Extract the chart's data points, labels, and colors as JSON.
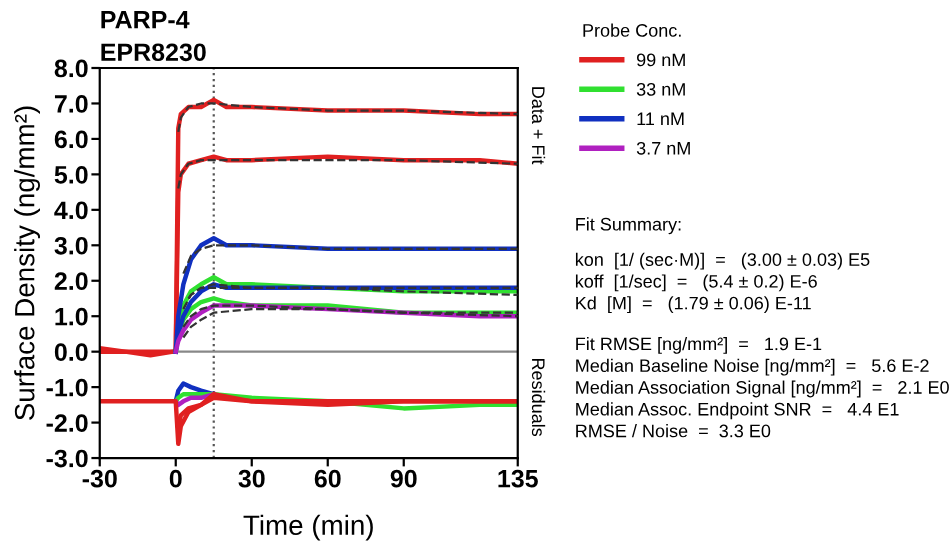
{
  "chart_data": {
    "type": "line",
    "title": "PARP-4",
    "subtitle": "EPR8230",
    "xlabel": "Time (min)",
    "ylabel": "Surface Density (ng/mm²)",
    "legend_title": "Probe Conc.",
    "legend": "right",
    "xlim": [
      -30,
      135
    ],
    "xticks": [
      -30,
      0,
      30,
      60,
      90,
      135
    ],
    "ylim": [
      -3,
      8
    ],
    "yticks": [
      {
        "value": -3,
        "label": "-3.0"
      },
      {
        "value": -2,
        "label": "-2.0"
      },
      {
        "value": -1,
        "label": "-1.0"
      },
      {
        "value": 0,
        "label": "0.0"
      },
      {
        "value": 1,
        "label": "1.0"
      },
      {
        "value": 2,
        "label": "2.0"
      },
      {
        "value": 3,
        "label": "3.0"
      },
      {
        "value": 4,
        "label": "4.0"
      },
      {
        "value": 5,
        "label": "5.0"
      },
      {
        "value": 6,
        "label": "6.0"
      },
      {
        "value": 7,
        "label": "7.0"
      },
      {
        "value": 8,
        "label": "8.0"
      }
    ],
    "grid": false,
    "marker": "none",
    "ref_lines": [
      {
        "axis": "x",
        "value": 15,
        "color": "#555555",
        "line_style": "dotted"
      },
      {
        "axis": "y",
        "value": 0,
        "color": "#888888",
        "line_style": "solid"
      }
    ],
    "series": [
      {
        "name": "99 nM",
        "color": "#e02020",
        "x": [
          -30,
          -20,
          -10,
          -1,
          0,
          1,
          2,
          5,
          10,
          15,
          20,
          30,
          60,
          90,
          120,
          135
        ],
        "values": [
          0.1,
          0.0,
          -0.1,
          0.0,
          0.0,
          6.3,
          6.7,
          6.9,
          6.9,
          7.1,
          6.9,
          6.9,
          6.8,
          6.8,
          6.7,
          6.7
        ]
      },
      {
        "color": "#e02020",
        "x": [
          -30,
          -20,
          -10,
          -1,
          0,
          1,
          2,
          5,
          10,
          15,
          20,
          30,
          60,
          90,
          120,
          135
        ],
        "values": [
          0.0,
          0.0,
          0.0,
          0.0,
          0.0,
          4.5,
          5.0,
          5.3,
          5.4,
          5.5,
          5.4,
          5.4,
          5.5,
          5.4,
          5.4,
          5.3
        ]
      },
      {
        "name": "33 nM",
        "color": "#30e030",
        "x": [
          0,
          1,
          3,
          6,
          10,
          15,
          20,
          30,
          60,
          90,
          120,
          135
        ],
        "values": [
          0.0,
          0.8,
          1.3,
          1.7,
          1.9,
          2.1,
          1.9,
          1.9,
          1.8,
          1.7,
          1.7,
          1.7
        ]
      },
      {
        "color": "#30e030",
        "x": [
          0,
          1,
          3,
          6,
          10,
          15,
          20,
          30,
          60,
          90,
          120,
          135
        ],
        "values": [
          0.0,
          0.5,
          0.9,
          1.2,
          1.4,
          1.5,
          1.4,
          1.3,
          1.3,
          1.1,
          1.1,
          1.1
        ]
      },
      {
        "name": "11 nM",
        "color": "#1030c0",
        "x": [
          0,
          1,
          3,
          6,
          10,
          15,
          20,
          30,
          60,
          90,
          120,
          135
        ],
        "values": [
          0.0,
          1.0,
          1.9,
          2.6,
          3.0,
          3.2,
          3.0,
          3.0,
          2.9,
          2.9,
          2.9,
          2.9
        ]
      },
      {
        "color": "#1030c0",
        "x": [
          0,
          1,
          3,
          6,
          10,
          15,
          20,
          30,
          60,
          90,
          120,
          135
        ],
        "values": [
          0.0,
          0.5,
          1.0,
          1.4,
          1.7,
          1.9,
          1.8,
          1.8,
          1.8,
          1.8,
          1.8,
          1.8
        ]
      },
      {
        "name": "3.7 nM",
        "color": "#b020c0",
        "x": [
          0,
          1,
          3,
          6,
          10,
          15,
          20,
          30,
          60,
          90,
          120,
          135
        ],
        "values": [
          0.0,
          0.3,
          0.6,
          0.9,
          1.1,
          1.3,
          1.3,
          1.3,
          1.2,
          1.1,
          1.0,
          1.0
        ]
      },
      {
        "color": "#333333",
        "line_style": "dashed",
        "x": [
          1,
          2,
          5,
          10,
          15,
          30,
          60,
          90,
          135
        ],
        "values": [
          6.2,
          6.6,
          6.9,
          7.0,
          7.0,
          6.9,
          6.8,
          6.8,
          6.7
        ]
      },
      {
        "color": "#333333",
        "line_style": "dashed",
        "x": [
          1,
          2,
          5,
          10,
          15,
          30,
          60,
          90,
          135
        ],
        "values": [
          4.6,
          5.0,
          5.3,
          5.4,
          5.4,
          5.4,
          5.4,
          5.4,
          5.3
        ]
      },
      {
        "color": "#333333",
        "line_style": "dashed",
        "x": [
          3,
          6,
          10,
          15,
          30,
          60,
          90,
          135
        ],
        "values": [
          2.2,
          2.7,
          2.9,
          3.0,
          3.0,
          2.9,
          2.9,
          2.9
        ]
      },
      {
        "color": "#333333",
        "line_style": "dashed",
        "x": [
          5,
          6,
          10,
          15,
          30,
          60,
          90,
          135
        ],
        "values": [
          1.5,
          1.6,
          1.8,
          1.8,
          1.8,
          1.8,
          1.8,
          1.8
        ]
      },
      {
        "color": "#333333",
        "line_style": "dashed",
        "x": [
          3,
          6,
          10,
          15,
          30,
          60,
          90,
          135
        ],
        "values": [
          1.2,
          1.6,
          1.8,
          1.9,
          1.8,
          1.8,
          1.7,
          1.6
        ]
      },
      {
        "color": "#333333",
        "line_style": "dashed",
        "x": [
          3,
          6,
          10,
          15,
          30,
          60,
          90,
          135
        ],
        "values": [
          0.7,
          1.0,
          1.2,
          1.3,
          1.3,
          1.2,
          1.1,
          1.1
        ]
      },
      {
        "color": "#333333",
        "line_style": "dashed",
        "x": [
          3,
          6,
          10,
          15,
          30,
          60,
          90,
          135
        ],
        "values": [
          0.4,
          0.7,
          0.9,
          1.1,
          1.2,
          1.2,
          1.1,
          1.0
        ]
      },
      {
        "color": "#1030c0",
        "x": [
          0,
          1,
          3,
          6,
          10,
          15
        ],
        "values": [
          -1.4,
          -1.1,
          -0.9,
          -1.0,
          -1.1,
          -1.2
        ]
      },
      {
        "color": "#30e030",
        "x": [
          0,
          1,
          3,
          6,
          10,
          15,
          30,
          60,
          90,
          120,
          135
        ],
        "values": [
          -1.4,
          -1.3,
          -1.2,
          -1.2,
          -1.2,
          -1.2,
          -1.3,
          -1.4,
          -1.6,
          -1.5,
          -1.5
        ]
      },
      {
        "color": "#b020c0",
        "x": [
          0,
          1,
          3,
          6,
          10,
          15
        ],
        "values": [
          -1.4,
          -1.5,
          -1.4,
          -1.3,
          -1.3,
          -1.2
        ]
      },
      {
        "color": "#e02020",
        "x": [
          -30,
          -20,
          -10,
          0,
          1,
          2,
          5,
          10,
          15,
          30,
          60,
          90,
          120,
          135
        ],
        "values": [
          -1.4,
          -1.4,
          -1.4,
          -1.4,
          -2.6,
          -2.1,
          -1.7,
          -1.5,
          -1.2,
          -1.4,
          -1.4,
          -1.4,
          -1.4,
          -1.4
        ]
      },
      {
        "color": "#e02020",
        "x": [
          1,
          2,
          5,
          10,
          15,
          30,
          60,
          90,
          120,
          135
        ],
        "values": [
          -2.1,
          -1.8,
          -1.6,
          -1.5,
          -1.3,
          -1.4,
          -1.5,
          -1.4,
          -1.4,
          -1.4
        ]
      }
    ],
    "annotations": [
      "Data + Fit",
      "Residuals",
      "Fit Summary:",
      "kon  [1/ (sec·M)]  =   (3.00 ± 0.03) E5",
      "koff  [1/sec]  =   (5.4 ± 0.2) E-6",
      "Kd  [M]  =   (1.79 ± 0.06) E-11",
      "Fit RMSE [ng/mm²]  =   1.9 E-1",
      "Median Baseline Noise [ng/mm²]  =   5.6 E-2",
      "Median Association Signal [ng/mm²]  =   2.1 E0",
      "Median Assoc. Endpoint SNR  =   4.4 E1",
      "RMSE / Noise  =  3.3 E0"
    ]
  }
}
